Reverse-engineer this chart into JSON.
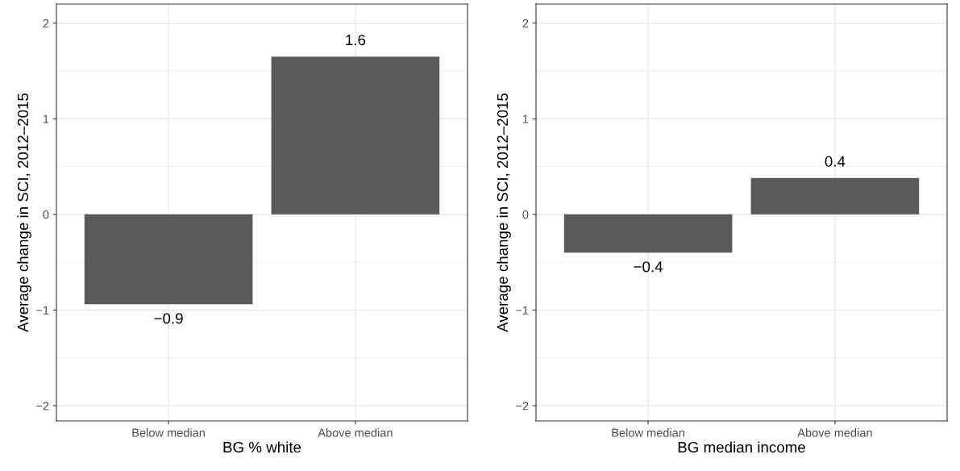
{
  "chart_data": [
    {
      "type": "bar",
      "xlabel": "BG % white",
      "ylabel": "Average change in SCI, 2012–2015",
      "categories": [
        "Below median",
        "Above median"
      ],
      "values": [
        -0.94,
        1.65
      ],
      "value_labels": [
        "−0.9",
        "1.6"
      ],
      "color": "#595959",
      "ylim": [
        -2.16,
        2.2
      ],
      "yticks": [
        -2,
        -1,
        0,
        1,
        2
      ],
      "grid": true
    },
    {
      "type": "bar",
      "xlabel": "BG median income",
      "ylabel": "Average change in SCI, 2012–2015",
      "categories": [
        "Below median",
        "Above median"
      ],
      "values": [
        -0.4,
        0.38
      ],
      "value_labels": [
        "−0.4",
        "0.4"
      ],
      "color": "#595959",
      "ylim": [
        -2.16,
        2.2
      ],
      "yticks": [
        -2,
        -1,
        0,
        1,
        2
      ],
      "grid": true
    }
  ]
}
